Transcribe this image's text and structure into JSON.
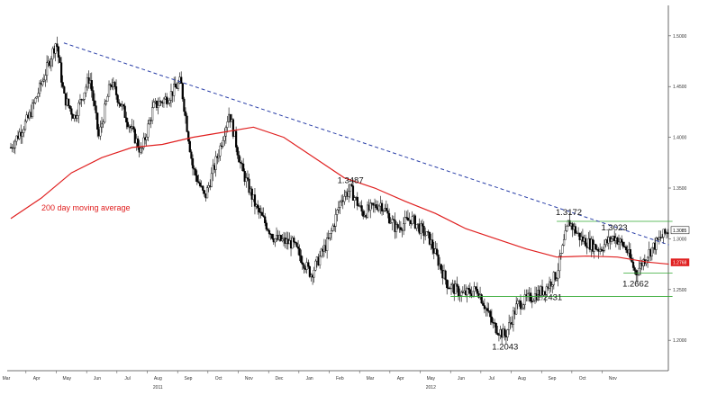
{
  "chart_data": {
    "type": "candlestick",
    "y_range": [
      1.17,
      1.53
    ],
    "y_ticks": [
      "1.2000",
      "1.2500",
      "1.3000",
      "1.3500",
      "1.4000",
      "1.4500",
      "1.5000"
    ],
    "y_tick_values": [
      1.2,
      1.25,
      1.3,
      1.35,
      1.4,
      1.45,
      1.5
    ],
    "x_months": [
      "Mar",
      "Apr",
      "May",
      "Jun",
      "Jul",
      "Aug",
      "Sep",
      "Oct",
      "Nov",
      "Dec",
      "Jan",
      "Feb",
      "Mar",
      "Apr",
      "May",
      "Jun",
      "Jul",
      "Aug",
      "Sep",
      "Oct",
      "Nov"
    ],
    "x_years": [
      {
        "label": "2011",
        "month_index": 5
      },
      {
        "label": "2012",
        "month_index": 14
      }
    ],
    "price_path": [
      [
        0,
        1.39
      ],
      [
        0.6,
        1.42
      ],
      [
        1.1,
        1.46
      ],
      [
        1.5,
        1.495
      ],
      [
        1.75,
        1.44
      ],
      [
        2.1,
        1.42
      ],
      [
        2.6,
        1.46
      ],
      [
        2.9,
        1.4
      ],
      [
        3.3,
        1.455
      ],
      [
        3.8,
        1.42
      ],
      [
        4.3,
        1.385
      ],
      [
        4.7,
        1.43
      ],
      [
        5.2,
        1.44
      ],
      [
        5.6,
        1.455
      ],
      [
        6.0,
        1.37
      ],
      [
        6.4,
        1.34
      ],
      [
        6.9,
        1.39
      ],
      [
        7.2,
        1.425
      ],
      [
        7.6,
        1.37
      ],
      [
        8.1,
        1.33
      ],
      [
        8.7,
        1.3
      ],
      [
        9.3,
        1.295
      ],
      [
        9.9,
        1.265
      ],
      [
        10.5,
        1.3
      ],
      [
        10.9,
        1.34
      ],
      [
        11.2,
        1.3487
      ],
      [
        11.6,
        1.325
      ],
      [
        12.2,
        1.335
      ],
      [
        12.7,
        1.31
      ],
      [
        13.2,
        1.32
      ],
      [
        13.8,
        1.3
      ],
      [
        14.4,
        1.255
      ],
      [
        14.9,
        1.245
      ],
      [
        15.4,
        1.25
      ],
      [
        15.9,
        1.215
      ],
      [
        16.3,
        1.2043
      ],
      [
        16.7,
        1.235
      ],
      [
        17.2,
        1.2431
      ],
      [
        17.6,
        1.25
      ],
      [
        18.0,
        1.265
      ],
      [
        18.4,
        1.3172
      ],
      [
        18.8,
        1.3
      ],
      [
        19.4,
        1.29
      ],
      [
        19.9,
        1.3023
      ],
      [
        20.3,
        1.29
      ],
      [
        20.6,
        1.2662
      ],
      [
        21.0,
        1.285
      ],
      [
        21.4,
        1.3
      ],
      [
        21.7,
        1.3085
      ]
    ],
    "moving_average": {
      "name": "200 day moving average",
      "points": [
        [
          0,
          1.32
        ],
        [
          1,
          1.34
        ],
        [
          2,
          1.365
        ],
        [
          3,
          1.38
        ],
        [
          4,
          1.39
        ],
        [
          5,
          1.393
        ],
        [
          6,
          1.4
        ],
        [
          7,
          1.405
        ],
        [
          8,
          1.41
        ],
        [
          9,
          1.4
        ],
        [
          10,
          1.38
        ],
        [
          11,
          1.36
        ],
        [
          12,
          1.35
        ],
        [
          13,
          1.337
        ],
        [
          14,
          1.325
        ],
        [
          15,
          1.31
        ],
        [
          16,
          1.3
        ],
        [
          17,
          1.29
        ],
        [
          18,
          1.282
        ],
        [
          19,
          1.283
        ],
        [
          20,
          1.282
        ],
        [
          21,
          1.277
        ],
        [
          21.7,
          1.275
        ]
      ]
    },
    "trendline": {
      "from": [
        1.75,
        1.493
      ],
      "to": [
        21.7,
        1.294
      ]
    },
    "support_lines": [
      {
        "value": 1.3172,
        "x_from": 18.0,
        "x_to": 21.7
      },
      {
        "value": 1.2662,
        "x_from": 20.2,
        "x_to": 21.7
      },
      {
        "value": 1.2431,
        "x_from": 14.5,
        "x_to": 21.7
      }
    ],
    "annotations": [
      {
        "text": "1.3487",
        "x": 11.2,
        "y": 1.3487,
        "pos": "above"
      },
      {
        "text": "1.3172",
        "x": 18.4,
        "y": 1.3172,
        "pos": "above"
      },
      {
        "text": "1.3023",
        "x": 19.9,
        "y": 1.3023,
        "pos": "above"
      },
      {
        "text": "1.2662",
        "x": 20.6,
        "y": 1.2662,
        "pos": "below"
      },
      {
        "text": "1.2431",
        "x": 17.2,
        "y": 1.2431,
        "pos": "right"
      },
      {
        "text": "1.2043",
        "x": 16.3,
        "y": 1.2043,
        "pos": "below"
      }
    ],
    "last_price_badges": [
      {
        "text": "1.3085",
        "value": 1.3085,
        "color": "#000000",
        "bg": "#ffffff"
      },
      {
        "text": "1.2768",
        "value": 1.2768,
        "color": "#ffffff",
        "bg": "#e02020"
      }
    ],
    "colors": {
      "candle": "#000000",
      "ma": "#e02020",
      "trend": "#2a3fa8",
      "support": "#33aa33"
    }
  }
}
